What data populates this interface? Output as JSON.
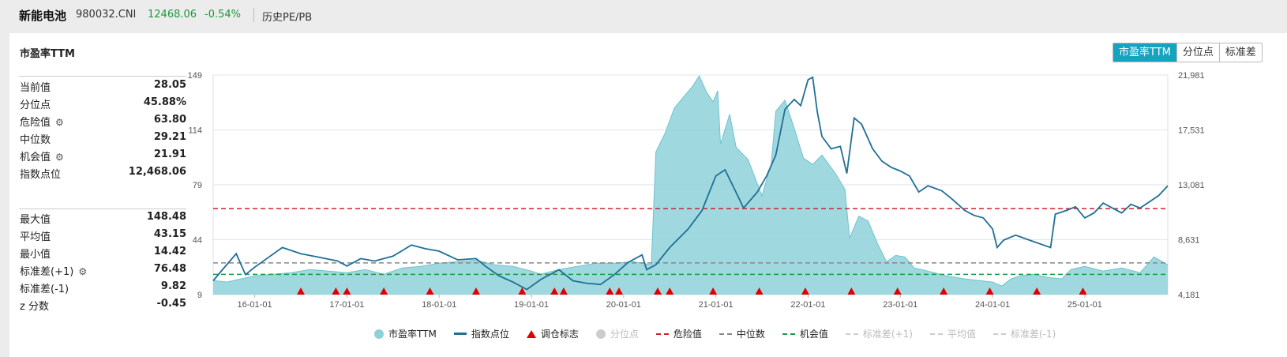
{
  "header": {
    "name": "新能电池",
    "code": "980032.CNI",
    "price": "12468.06",
    "change": "-0.54%",
    "link": "历史PE/PB"
  },
  "panel": {
    "title": "市盈率TTM",
    "tabs": [
      "市盈率TTM",
      "分位点",
      "标准差"
    ]
  },
  "stats_top": [
    {
      "label": "当前值",
      "value": "28.05",
      "gear": false
    },
    {
      "label": "分位点",
      "value": "45.88%",
      "gear": false
    },
    {
      "label": "危险值",
      "value": "63.80",
      "gear": true
    },
    {
      "label": "中位数",
      "value": "29.21",
      "gear": false
    },
    {
      "label": "机会值",
      "value": "21.91",
      "gear": true
    },
    {
      "label": "指数点位",
      "value": "12,468.06",
      "gear": false
    }
  ],
  "stats_bottom": [
    {
      "label": "最大值",
      "value": "148.48",
      "gear": false
    },
    {
      "label": "平均值",
      "value": "43.15",
      "gear": false
    },
    {
      "label": "最小值",
      "value": "14.42",
      "gear": false
    },
    {
      "label": "标准差(+1)",
      "value": "76.48",
      "gear": true
    },
    {
      "label": "标准差(-1)",
      "value": "9.82",
      "gear": false
    },
    {
      "label": "z 分数",
      "value": "-0.45",
      "gear": false
    }
  ],
  "legend": [
    {
      "label": "市盈率TTM",
      "kind": "circle",
      "color": "#8fd1db",
      "active": true
    },
    {
      "label": "指数点位",
      "kind": "line",
      "color": "#1f6f96",
      "active": true
    },
    {
      "label": "调仓标志",
      "kind": "triangle",
      "color": "#e00000",
      "active": true
    },
    {
      "label": "分位点",
      "kind": "circle",
      "color": "#cccccc",
      "active": false
    },
    {
      "label": "危险值",
      "kind": "dash",
      "color": "#d0202a",
      "active": true
    },
    {
      "label": "中位数",
      "kind": "dash",
      "color": "#888888",
      "active": true
    },
    {
      "label": "机会值",
      "kind": "dash",
      "color": "#1a9a4a",
      "active": true
    },
    {
      "label": "标准差(+1)",
      "kind": "dash",
      "color": "#cccccc",
      "active": false
    },
    {
      "label": "平均值",
      "kind": "dash",
      "color": "#cccccc",
      "active": false
    },
    {
      "label": "标准差(-1)",
      "kind": "dash",
      "color": "#cccccc",
      "active": false
    }
  ],
  "chart_data": {
    "type": "area",
    "x_tick_labels": [
      "16-01-01",
      "17-01-01",
      "18-01-01",
      "19-01-01",
      "20-01-01",
      "21-01-01",
      "22-01-01",
      "23-01-01",
      "24-01-01",
      "25-01-01"
    ],
    "y_left_ticks": [
      "149",
      "114",
      "79",
      "44",
      "9"
    ],
    "y_right_ticks": [
      "21,981",
      "17,531",
      "13,081",
      "8,631",
      "4,181"
    ],
    "y_left_range": [
      9,
      149
    ],
    "y_right_range": [
      4181,
      21981
    ],
    "x_range": [
      2015.55,
      2025.9
    ],
    "colors": {
      "pe_fill": "#8fd1db",
      "pe_line": "#6fc2cf",
      "index": "#1f6f96",
      "danger": "#d0202a",
      "median": "#888888",
      "opportunity": "#1a9a4a",
      "marker": "#e00000"
    },
    "reference_lines": {
      "danger": 63.8,
      "median": 29.21,
      "opportunity": 21.91
    },
    "pe_ttm": [
      [
        2015.55,
        18
      ],
      [
        2015.7,
        17
      ],
      [
        2015.85,
        19
      ],
      [
        2016.0,
        21
      ],
      [
        2016.2,
        22
      ],
      [
        2016.4,
        23
      ],
      [
        2016.6,
        25
      ],
      [
        2016.8,
        24
      ],
      [
        2017.0,
        23
      ],
      [
        2017.2,
        25
      ],
      [
        2017.4,
        22
      ],
      [
        2017.6,
        26
      ],
      [
        2017.8,
        27
      ],
      [
        2018.0,
        29
      ],
      [
        2018.2,
        30
      ],
      [
        2018.4,
        31
      ],
      [
        2018.6,
        28
      ],
      [
        2018.8,
        27
      ],
      [
        2019.0,
        24
      ],
      [
        2019.1,
        22
      ],
      [
        2019.3,
        25
      ],
      [
        2019.5,
        27
      ],
      [
        2019.7,
        29
      ],
      [
        2019.9,
        29
      ],
      [
        2020.1,
        30
      ],
      [
        2020.3,
        28
      ],
      [
        2020.35,
        100
      ],
      [
        2020.45,
        112
      ],
      [
        2020.55,
        128
      ],
      [
        2020.65,
        135
      ],
      [
        2020.75,
        142
      ],
      [
        2020.82,
        148.5
      ],
      [
        2020.9,
        138
      ],
      [
        2020.97,
        132
      ],
      [
        2021.02,
        139
      ],
      [
        2021.05,
        105
      ],
      [
        2021.15,
        124
      ],
      [
        2021.22,
        103
      ],
      [
        2021.35,
        95
      ],
      [
        2021.5,
        72
      ],
      [
        2021.6,
        92
      ],
      [
        2021.65,
        126
      ],
      [
        2021.75,
        133
      ],
      [
        2021.85,
        115
      ],
      [
        2021.95,
        96
      ],
      [
        2022.05,
        92
      ],
      [
        2022.15,
        98
      ],
      [
        2022.3,
        86
      ],
      [
        2022.4,
        76
      ],
      [
        2022.45,
        45
      ],
      [
        2022.55,
        59
      ],
      [
        2022.65,
        56
      ],
      [
        2022.75,
        42
      ],
      [
        2022.85,
        30
      ],
      [
        2022.95,
        34
      ],
      [
        2023.05,
        33
      ],
      [
        2023.15,
        26
      ],
      [
        2023.3,
        24
      ],
      [
        2023.5,
        21
      ],
      [
        2023.7,
        19
      ],
      [
        2023.85,
        18
      ],
      [
        2024.0,
        17
      ],
      [
        2024.1,
        14.5
      ],
      [
        2024.2,
        19
      ],
      [
        2024.3,
        21
      ],
      [
        2024.45,
        22
      ],
      [
        2024.6,
        20
      ],
      [
        2024.75,
        19
      ],
      [
        2024.85,
        25
      ],
      [
        2025.0,
        27
      ],
      [
        2025.2,
        24
      ],
      [
        2025.4,
        26
      ],
      [
        2025.6,
        23
      ],
      [
        2025.75,
        33
      ],
      [
        2025.9,
        28
      ]
    ],
    "index_points": [
      [
        2015.55,
        5300
      ],
      [
        2015.65,
        6200
      ],
      [
        2015.8,
        7500
      ],
      [
        2015.9,
        5800
      ],
      [
        2016.0,
        6400
      ],
      [
        2016.15,
        7200
      ],
      [
        2016.3,
        8000
      ],
      [
        2016.5,
        7500
      ],
      [
        2016.7,
        7200
      ],
      [
        2016.9,
        6900
      ],
      [
        2017.0,
        6500
      ],
      [
        2017.15,
        7100
      ],
      [
        2017.3,
        6900
      ],
      [
        2017.5,
        7300
      ],
      [
        2017.7,
        8200
      ],
      [
        2017.85,
        7900
      ],
      [
        2018.0,
        7700
      ],
      [
        2018.2,
        7000
      ],
      [
        2018.4,
        7100
      ],
      [
        2018.5,
        6500
      ],
      [
        2018.65,
        5700
      ],
      [
        2018.8,
        5200
      ],
      [
        2018.95,
        4600
      ],
      [
        2019.1,
        5400
      ],
      [
        2019.3,
        6200
      ],
      [
        2019.45,
        5300
      ],
      [
        2019.6,
        5100
      ],
      [
        2019.75,
        5000
      ],
      [
        2019.9,
        5800
      ],
      [
        2020.05,
        6800
      ],
      [
        2020.2,
        7400
      ],
      [
        2020.25,
        6200
      ],
      [
        2020.35,
        6600
      ],
      [
        2020.5,
        8000
      ],
      [
        2020.7,
        9500
      ],
      [
        2020.85,
        11000
      ],
      [
        2021.0,
        13800
      ],
      [
        2021.1,
        14300
      ],
      [
        2021.25,
        12000
      ],
      [
        2021.3,
        11200
      ],
      [
        2021.45,
        12500
      ],
      [
        2021.55,
        13800
      ],
      [
        2021.65,
        15500
      ],
      [
        2021.75,
        19200
      ],
      [
        2021.85,
        20000
      ],
      [
        2021.92,
        19500
      ],
      [
        2022.0,
        21600
      ],
      [
        2022.05,
        21800
      ],
      [
        2022.1,
        19000
      ],
      [
        2022.15,
        17000
      ],
      [
        2022.25,
        16000
      ],
      [
        2022.35,
        16200
      ],
      [
        2022.42,
        14000
      ],
      [
        2022.5,
        18500
      ],
      [
        2022.58,
        18000
      ],
      [
        2022.7,
        16000
      ],
      [
        2022.8,
        15000
      ],
      [
        2022.9,
        14500
      ],
      [
        2023.0,
        14200
      ],
      [
        2023.1,
        13800
      ],
      [
        2023.2,
        12500
      ],
      [
        2023.3,
        13000
      ],
      [
        2023.45,
        12600
      ],
      [
        2023.55,
        12000
      ],
      [
        2023.7,
        11000
      ],
      [
        2023.8,
        10600
      ],
      [
        2023.9,
        10400
      ],
      [
        2024.0,
        9500
      ],
      [
        2024.05,
        8000
      ],
      [
        2024.12,
        8600
      ],
      [
        2024.25,
        9000
      ],
      [
        2024.4,
        8600
      ],
      [
        2024.55,
        8200
      ],
      [
        2024.63,
        8000
      ],
      [
        2024.68,
        10700
      ],
      [
        2024.8,
        11000
      ],
      [
        2024.9,
        11300
      ],
      [
        2025.0,
        10400
      ],
      [
        2025.1,
        10800
      ],
      [
        2025.2,
        11600
      ],
      [
        2025.3,
        11200
      ],
      [
        2025.4,
        10800
      ],
      [
        2025.5,
        11500
      ],
      [
        2025.6,
        11200
      ],
      [
        2025.7,
        11700
      ],
      [
        2025.8,
        12200
      ],
      [
        2025.9,
        13000
      ]
    ],
    "rebalance_markers": [
      2016.5,
      2016.88,
      2017.0,
      2017.4,
      2017.9,
      2018.4,
      2018.9,
      2019.25,
      2019.35,
      2019.85,
      2019.95,
      2020.37,
      2020.5,
      2020.97,
      2021.47,
      2021.97,
      2022.47,
      2022.97,
      2023.47,
      2023.97,
      2024.48,
      2024.98
    ]
  }
}
